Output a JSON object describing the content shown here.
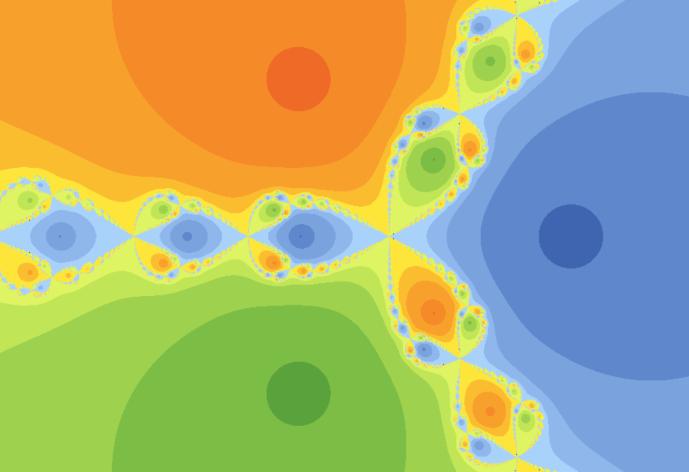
{
  "image": {
    "subject": "newton-fractal",
    "basins": [
      {
        "name": "orange-basin",
        "colors": [
          "#fde53a",
          "#fbbd30",
          "#f8a02c",
          "#f48a28",
          "#ef6a26"
        ]
      },
      {
        "name": "blue-basin",
        "colors": [
          "#a9d2fb",
          "#8fb7ec",
          "#7aa3de",
          "#5f87cc",
          "#3f64b0"
        ]
      },
      {
        "name": "green-basin",
        "colors": [
          "#dff462",
          "#c0e657",
          "#9ed14e",
          "#7cbd45",
          "#5aa23b"
        ]
      }
    ]
  }
}
